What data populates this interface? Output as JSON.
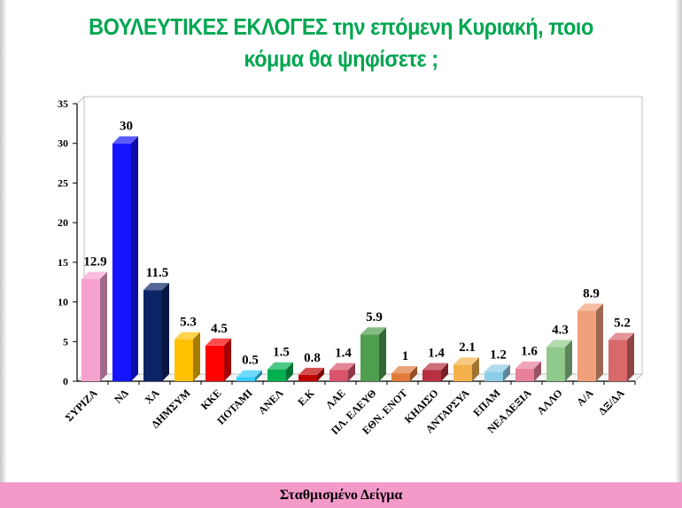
{
  "header": {
    "title_line1": "ΒΟΥΛΕΥΤΙΚΕΣ  ΕΚΛΟΓΕΣ την επόμενη Κυριακή, ποιο",
    "title_line2": "κόμμα θα ψηφίσετε ;"
  },
  "footer": {
    "label": "Σταθμισμένο Δείγμα"
  },
  "chart_data": {
    "type": "bar",
    "title": "ΒΟΥΛΕΥΤΙΚΕΣ  ΕΚΛΟΓΕΣ την επόμενη Κυριακή, ποιο κόμμα θα ψηφίσετε ;",
    "xlabel": "",
    "ylabel": "",
    "ylim": [
      0,
      35
    ],
    "yticks": [
      0,
      5,
      10,
      15,
      20,
      25,
      30,
      35
    ],
    "grid": false,
    "legend": "none",
    "categories": [
      "ΣΥΡΙΖΑ",
      "ΝΔ",
      "ΧΑ",
      "ΔΗΜΣΥΜ",
      "ΚΚΕ",
      "ΠΟΤΑΜΙ",
      "ΑΝΕΛ",
      "Ε.Κ",
      "ΛΑΕ",
      "ΠΛ. ΕΛΕΥΘ",
      "ΕΘΝ. ΕΝΟΤ",
      "ΚΗΔΙΣΟ",
      "ΑΝΤΑΡΣΥΑ",
      "ΕΠΑΜ",
      "ΝΕΑ ΔΕΞΙΑ",
      "ΑΛΛΟ",
      "Α/Α",
      "ΔΞ/ΔΑ"
    ],
    "values": [
      12.9,
      30,
      11.5,
      5.3,
      4.5,
      0.5,
      1.5,
      0.8,
      1.4,
      5.9,
      1,
      1.4,
      2.1,
      1.2,
      1.6,
      4.3,
      8.9,
      5.2
    ],
    "value_labels": [
      "12.9",
      "30",
      "11.5",
      "5.3",
      "4.5",
      "0.5",
      "1.5",
      "0.8",
      "1.4",
      "5.9",
      "1",
      "1.4",
      "2.1",
      "1.2",
      "1.6",
      "4.3",
      "8.9",
      "5.2"
    ],
    "colors": [
      "#f7a1cf",
      "#1515ff",
      "#0b2466",
      "#ffc000",
      "#ff0000",
      "#33ccff",
      "#00b050",
      "#c00000",
      "#d9536a",
      "#4f9e4f",
      "#e07b39",
      "#b83040",
      "#f5b24c",
      "#8ecde8",
      "#e87f9a",
      "#8fca8a",
      "#f0a07a",
      "#d9686a"
    ]
  }
}
